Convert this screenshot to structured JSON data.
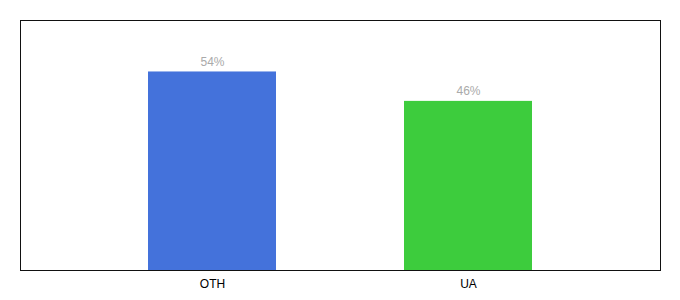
{
  "chart_data": {
    "type": "bar",
    "categories": [
      "OTH",
      "UA"
    ],
    "values": [
      54,
      46
    ],
    "value_labels": [
      "54%",
      "46%"
    ],
    "colors": [
      "#4472db",
      "#3dcc3d"
    ],
    "data_labels": true,
    "tick_labels": "x",
    "ylim": [
      0,
      68
    ]
  }
}
